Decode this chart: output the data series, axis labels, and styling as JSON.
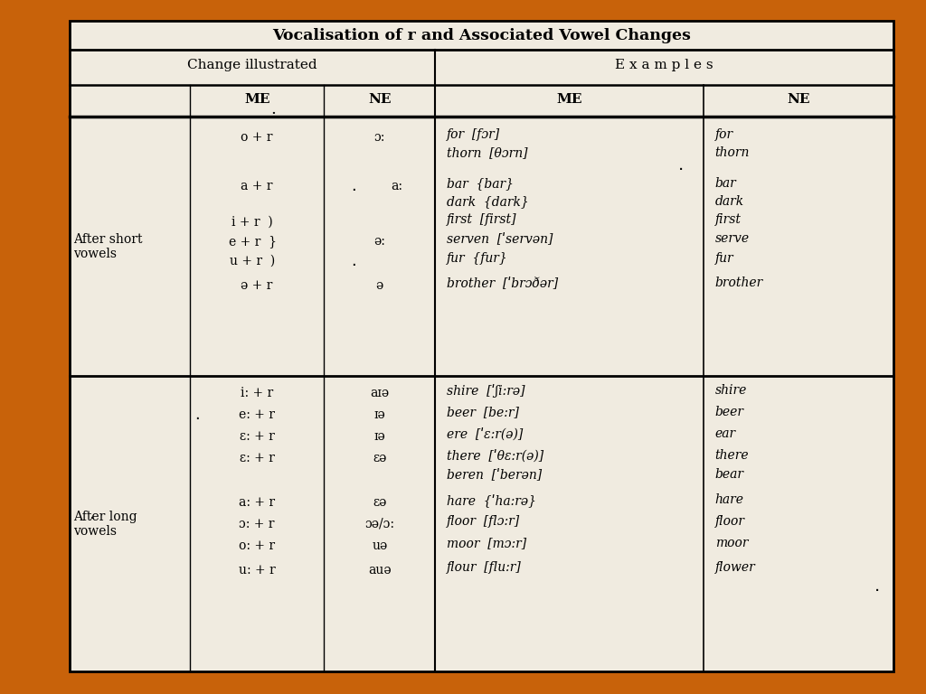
{
  "title": "Vocalisation of r and Associated Vowel Changes",
  "bg_color": "#c8620a",
  "table_bg": "#f0ebe0",
  "col1_header": "Change illustrated",
  "col2_header": "E x a m p l e s",
  "row1_label": "After short\nvowels",
  "row2_label": "After long\nvowels"
}
